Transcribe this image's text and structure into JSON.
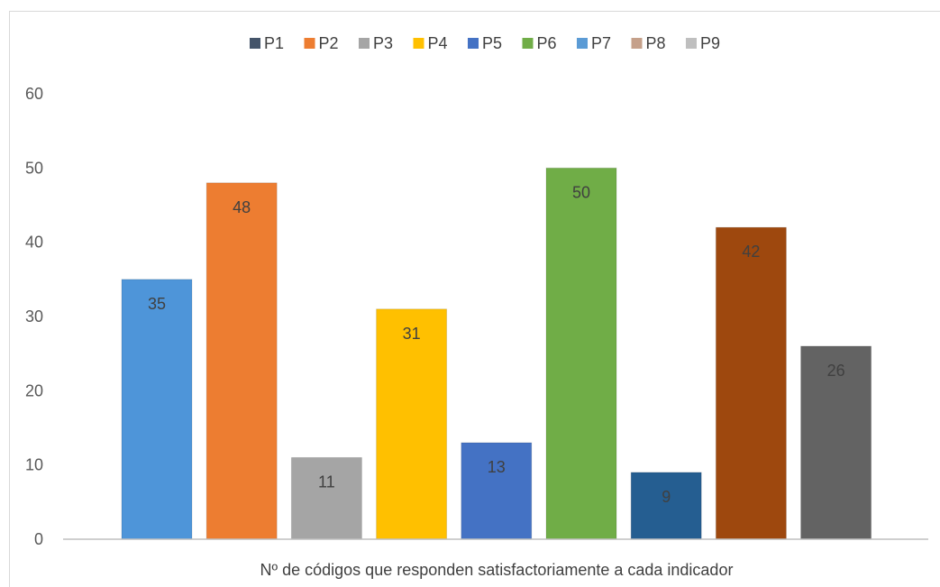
{
  "chart_data": {
    "type": "bar",
    "title": "",
    "xlabel": "Nº de códigos que responden satisfactoriamente a cada indicador",
    "ylabel": "",
    "ylim": [
      0,
      60
    ],
    "yticks": [
      0,
      10,
      20,
      30,
      40,
      50,
      60
    ],
    "legend_position": "top",
    "grid": false,
    "series": [
      {
        "name": "P1",
        "value": 35,
        "color": "#4e95d9"
      },
      {
        "name": "P2",
        "value": 48,
        "color": "#ed7d31"
      },
      {
        "name": "P3",
        "value": 11,
        "color": "#a5a5a5"
      },
      {
        "name": "P4",
        "value": 31,
        "color": "#ffc000"
      },
      {
        "name": "P5",
        "value": 13,
        "color": "#4472c4"
      },
      {
        "name": "P6",
        "value": 50,
        "color": "#70ad47"
      },
      {
        "name": "P7",
        "value": 9,
        "color": "#255e91"
      },
      {
        "name": "P8",
        "value": 42,
        "color": "#9e480e"
      },
      {
        "name": "P9",
        "value": 26,
        "color": "#636363"
      }
    ],
    "legend_colors": [
      "#44546a",
      "#ed7d31",
      "#a5a5a5",
      "#ffc000",
      "#4472c4",
      "#70ad47",
      "#5b9bd5",
      "#c5a08a",
      "#bfbfbf"
    ]
  }
}
